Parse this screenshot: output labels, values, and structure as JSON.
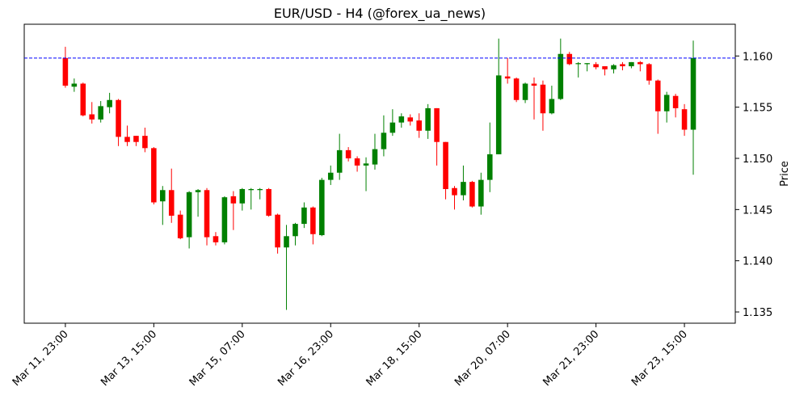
{
  "chart_data": {
    "type": "candlestick",
    "title": "EUR/USD - H4 (@forex_ua_news)",
    "y_label": "Price",
    "categories": [
      "Mar 11, 23:00",
      null,
      null,
      null,
      null,
      null,
      null,
      null,
      null,
      null,
      "Mar 13, 15:00",
      null,
      null,
      null,
      null,
      null,
      null,
      null,
      null,
      null,
      "Mar 15, 07:00",
      null,
      null,
      null,
      null,
      null,
      null,
      null,
      null,
      null,
      "Mar 16, 23:00",
      null,
      null,
      null,
      null,
      null,
      null,
      null,
      null,
      null,
      "Mar 18, 15:00",
      null,
      null,
      null,
      null,
      null,
      null,
      null,
      null,
      null,
      "Mar 20, 07:00",
      null,
      null,
      null,
      null,
      null,
      null,
      null,
      null,
      null,
      "Mar 21, 23:00",
      null,
      null,
      null,
      null,
      null,
      null,
      null,
      null,
      null,
      "Mar 23, 15:00",
      null
    ],
    "open": [
      1.1598,
      1.157,
      1.1573,
      1.1543,
      1.1538,
      1.155,
      1.1557,
      1.1521,
      1.1522,
      1.1522,
      1.151,
      1.1458,
      1.1469,
      1.1445,
      1.1423,
      1.1467,
      1.1469,
      1.1424,
      1.1418,
      1.1463,
      1.1456,
      1.1469,
      1.1469,
      1.147,
      1.1445,
      1.1413,
      1.1424,
      1.1436,
      1.1452,
      1.1425,
      1.1479,
      1.1486,
      1.1508,
      1.15,
      1.1493,
      1.1494,
      1.1509,
      1.1525,
      1.1535,
      1.154,
      1.1537,
      1.1527,
      1.1549,
      1.1516,
      1.1471,
      1.1464,
      1.1477,
      1.1453,
      1.1479,
      1.1504,
      1.158,
      1.1578,
      1.1557,
      1.1573,
      1.1572,
      1.1544,
      1.1558,
      1.1602,
      1.1592,
      1.1592,
      1.1592,
      1.159,
      1.1587,
      1.1592,
      1.159,
      1.1594,
      1.1592,
      1.1576,
      1.1546,
      1.1561,
      1.1548,
      1.1528
    ],
    "high": [
      1.1609,
      1.1578,
      1.1574,
      1.1555,
      1.1556,
      1.1564,
      1.1558,
      1.1532,
      1.1522,
      1.153,
      1.1511,
      1.1473,
      1.149,
      1.1449,
      1.1468,
      1.147,
      1.1471,
      1.1428,
      1.1463,
      1.1468,
      1.1471,
      1.1471,
      1.1471,
      1.1471,
      1.1446,
      1.1435,
      1.1437,
      1.1457,
      1.1453,
      1.1481,
      1.1493,
      1.1524,
      1.1511,
      1.1502,
      1.1501,
      1.1524,
      1.1542,
      1.1548,
      1.1544,
      1.1543,
      1.1544,
      1.1553,
      1.1549,
      1.1516,
      1.1473,
      1.1493,
      1.1478,
      1.1486,
      1.1535,
      1.1617,
      1.1598,
      1.1579,
      1.1574,
      1.1579,
      1.1576,
      1.1571,
      1.1617,
      1.1604,
      1.1594,
      1.1593,
      1.1594,
      1.159,
      1.1592,
      1.1594,
      1.1594,
      1.1595,
      1.1593,
      1.1577,
      1.1565,
      1.1563,
      1.1553,
      1.1615
    ],
    "low": [
      1.1569,
      1.1565,
      1.1541,
      1.1534,
      1.1535,
      1.1544,
      1.1512,
      1.1512,
      1.1512,
      1.1506,
      1.1455,
      1.1435,
      1.1437,
      1.1421,
      1.1412,
      1.1443,
      1.1415,
      1.1415,
      1.1416,
      1.143,
      1.1449,
      1.145,
      1.146,
      1.1443,
      1.1407,
      1.1352,
      1.1415,
      1.1432,
      1.1416,
      1.1424,
      1.1474,
      1.1479,
      1.1497,
      1.1487,
      1.1468,
      1.1489,
      1.1502,
      1.1522,
      1.153,
      1.1532,
      1.152,
      1.1519,
      1.1493,
      1.146,
      1.145,
      1.1459,
      1.1452,
      1.1445,
      1.1467,
      1.1504,
      1.1573,
      1.1555,
      1.1554,
      1.1538,
      1.1527,
      1.1543,
      1.1557,
      1.1591,
      1.1579,
      1.1585,
      1.1587,
      1.1581,
      1.1583,
      1.1586,
      1.1588,
      1.1585,
      1.1572,
      1.1524,
      1.1535,
      1.154,
      1.1522,
      1.1484
    ],
    "close": [
      1.1571,
      1.1573,
      1.1542,
      1.1538,
      1.1551,
      1.1557,
      1.1521,
      1.1516,
      1.1516,
      1.151,
      1.1457,
      1.1469,
      1.1444,
      1.1422,
      1.1467,
      1.1469,
      1.1423,
      1.1418,
      1.1462,
      1.1456,
      1.147,
      1.147,
      1.147,
      1.1444,
      1.1413,
      1.1424,
      1.1436,
      1.1452,
      1.1426,
      1.1479,
      1.1486,
      1.1508,
      1.15,
      1.1493,
      1.1495,
      1.1509,
      1.1525,
      1.1535,
      1.1541,
      1.1536,
      1.1527,
      1.1549,
      1.1516,
      1.147,
      1.1464,
      1.1477,
      1.1453,
      1.1479,
      1.1504,
      1.1581,
      1.1578,
      1.1557,
      1.1573,
      1.1571,
      1.1544,
      1.1558,
      1.1602,
      1.1592,
      1.1593,
      1.1593,
      1.1589,
      1.1587,
      1.1591,
      1.159,
      1.1594,
      1.1592,
      1.1576,
      1.1546,
      1.1562,
      1.1549,
      1.1528,
      1.1598
    ],
    "up_color": "green",
    "down_color": "red",
    "hline": {
      "value": 1.1598,
      "color": "blue"
    },
    "ylim": [
      1.1339,
      1.1631
    ],
    "yticks": [
      1.135,
      {
        "value": 1.14,
        "label": "1.140"
      },
      1.145,
      {
        "value": 1.15,
        "label": "1.150"
      },
      1.155,
      {
        "value": 1.16,
        "label": "1.160"
      }
    ]
  }
}
